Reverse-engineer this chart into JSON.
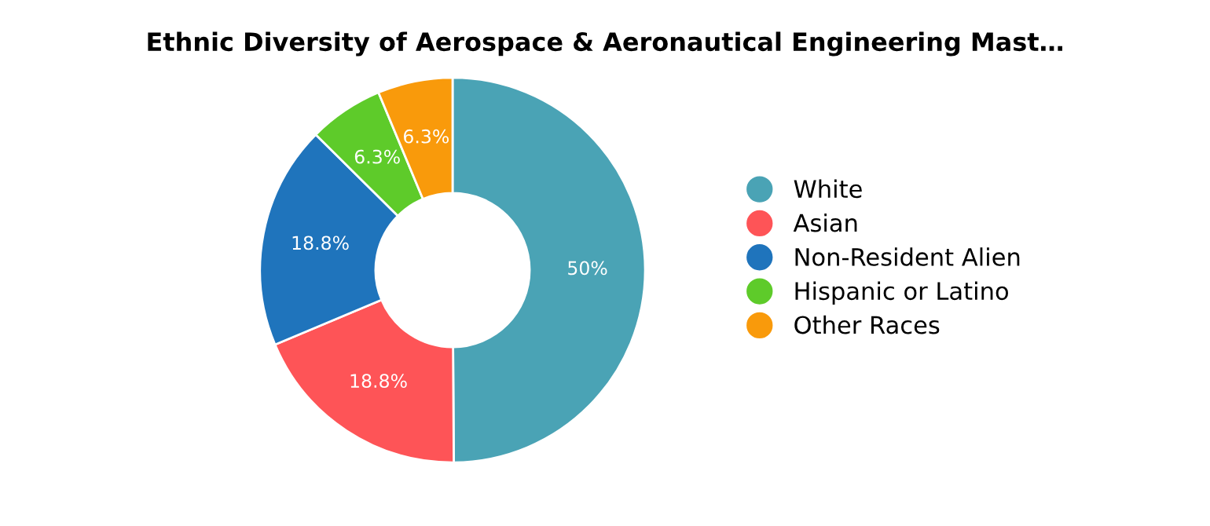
{
  "chart_data": {
    "type": "donut",
    "title": "Ethnic Diversity of Aerospace & Aeronautical Engineering Mast…",
    "categories": [
      "White",
      "Asian",
      "Non-Resident Alien",
      "Hispanic or Latino",
      "Other Races"
    ],
    "values": [
      50,
      18.8,
      18.8,
      6.3,
      6.3
    ],
    "colors": [
      "#4aa3b5",
      "#fe5457",
      "#1f74bc",
      "#5ecb2a",
      "#f99a0b"
    ],
    "value_labels": [
      "50%",
      "18.8%",
      "18.8%",
      "6.3%",
      "6.3%"
    ],
    "legend": "right"
  }
}
